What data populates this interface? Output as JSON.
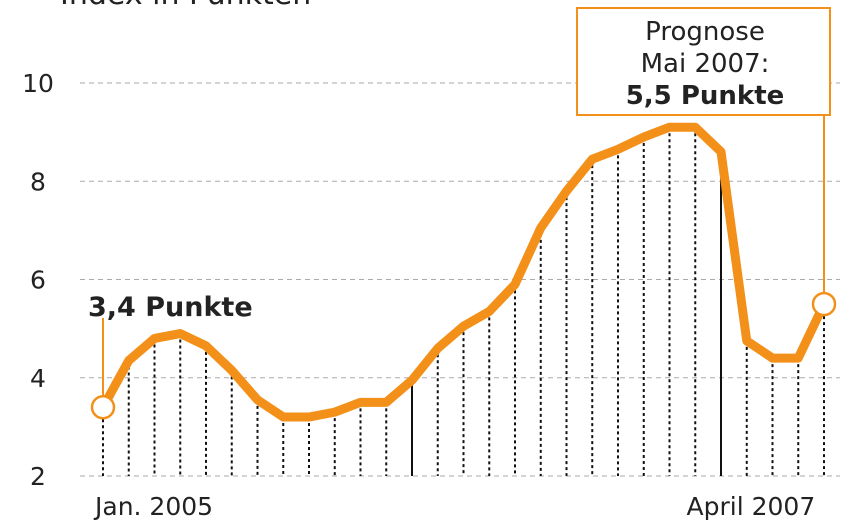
{
  "chart_data": {
    "type": "line",
    "title": "Index in Punkten",
    "categories": [
      "Jan. 2005",
      null,
      null,
      null,
      null,
      null,
      null,
      null,
      null,
      null,
      null,
      null,
      null,
      null,
      null,
      null,
      null,
      null,
      null,
      null,
      null,
      null,
      null,
      null,
      null,
      null,
      null,
      "April 2007",
      null
    ],
    "values": [
      3.4,
      4.35,
      4.8,
      4.9,
      4.65,
      4.15,
      3.55,
      3.2,
      3.2,
      3.3,
      3.5,
      3.5,
      3.95,
      4.6,
      5.05,
      5.35,
      5.9,
      7.05,
      7.8,
      8.45,
      8.65,
      8.9,
      9.1,
      9.1,
      8.6,
      4.75,
      4.4,
      4.4,
      5.5
    ],
    "color": "#f39019",
    "ylim": [
      2,
      10.5
    ],
    "yticks": [
      2,
      4,
      6,
      8,
      10
    ],
    "grid": true,
    "annotations": [
      {
        "text": "3,4 Punkte",
        "point": 0
      },
      {
        "lines": [
          "Prognose",
          "Mai 2007:",
          "5,5 Punkte"
        ],
        "point": 28
      }
    ]
  }
}
